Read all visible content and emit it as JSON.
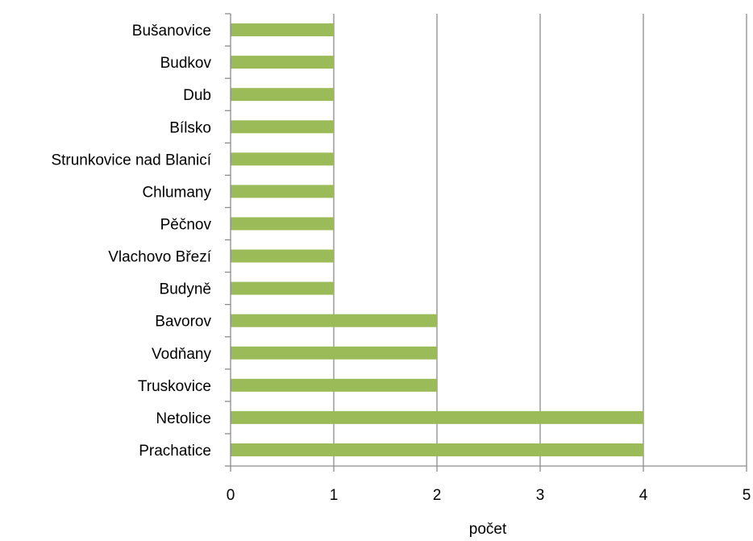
{
  "chart_data": {
    "type": "bar",
    "orientation": "horizontal",
    "categories": [
      "Bušanovice",
      "Budkov",
      "Dub",
      "Bílsko",
      "Strunkovice nad Blanicí",
      "Chlumany",
      "Pěčnov",
      "Vlachovo Březí",
      "Budyně",
      "Bavorov",
      "Vodňany",
      "Truskovice",
      "Netolice",
      "Prachatice"
    ],
    "values": [
      1,
      1,
      1,
      1,
      1,
      1,
      1,
      1,
      1,
      2,
      2,
      2,
      4,
      4
    ],
    "xlabel": "počet",
    "ylabel": "",
    "xlim": [
      0,
      5
    ],
    "xticks": [
      "0",
      "1",
      "2",
      "3",
      "4",
      "5"
    ],
    "grid": "vertical",
    "legend": "none",
    "colors": {
      "bar": "#9BBB59",
      "grid": "#8C8C8C",
      "axis": "#8C8C8C"
    }
  }
}
